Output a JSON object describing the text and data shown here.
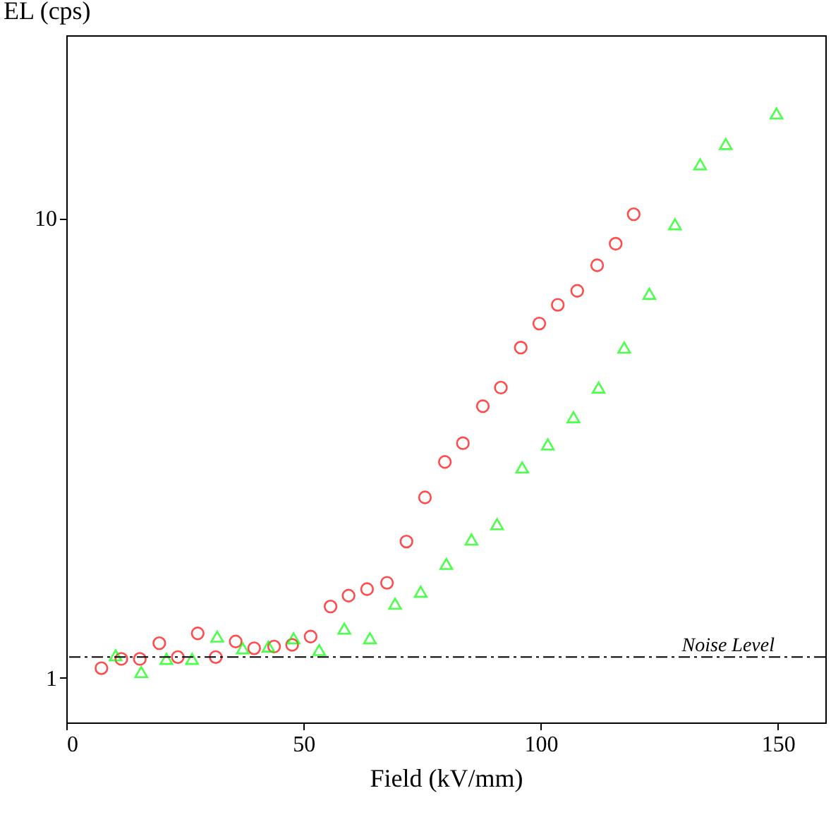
{
  "chart_data": {
    "type": "scatter",
    "xlabel": "Field (kV/mm)",
    "ylabel": "EL (cps)",
    "log": "y",
    "xlim": [
      0,
      160
    ],
    "xticks": [
      0,
      50,
      100,
      150
    ],
    "ylim": [
      0.8,
      25
    ],
    "yticks": [
      1,
      10
    ],
    "grid": false,
    "series": [
      {
        "color": "#ff0000",
        "marker": "circle",
        "x": [
          7.4,
          11.6,
          15.5,
          19.6,
          23.5,
          27.7,
          31.5,
          35.7,
          39.6,
          43.8,
          47.6,
          51.5,
          55.7,
          59.5,
          63.4,
          67.6,
          71.7,
          75.6,
          79.8,
          83.6,
          87.8,
          91.6,
          95.8,
          99.7,
          103.6,
          107.7,
          111.9,
          115.8,
          119.6
        ],
        "values": [
          1.05,
          1.1,
          1.1,
          1.19,
          1.11,
          1.25,
          1.11,
          1.2,
          1.16,
          1.17,
          1.18,
          1.23,
          1.43,
          1.51,
          1.56,
          1.61,
          1.98,
          2.47,
          2.95,
          3.24,
          3.9,
          4.28,
          5.23,
          5.9,
          6.48,
          6.95,
          7.9,
          8.8,
          10.2
        ]
      },
      {
        "color": "#00ff00",
        "marker": "triangle",
        "x": [
          10.4,
          15.8,
          21.1,
          26.5,
          31.8,
          37.2,
          42.6,
          47.9,
          53.3,
          58.6,
          64.0,
          69.3,
          74.7,
          80.1,
          85.4,
          90.8,
          96.1,
          101.5,
          106.9,
          112.2,
          117.6,
          122.9,
          128.3,
          133.6,
          139.0,
          149.7
        ],
        "values": [
          1.12,
          1.03,
          1.1,
          1.1,
          1.23,
          1.16,
          1.17,
          1.22,
          1.15,
          1.28,
          1.22,
          1.45,
          1.54,
          1.77,
          2.0,
          2.16,
          2.87,
          3.22,
          3.69,
          4.28,
          5.23,
          6.85,
          9.7,
          13.1,
          14.5,
          16.9
        ]
      }
    ],
    "ref_lines": [
      {
        "axis": "y",
        "value": 1.11,
        "label": "Noise Level",
        "color": "#000000",
        "line_style": "dashdot"
      }
    ]
  }
}
